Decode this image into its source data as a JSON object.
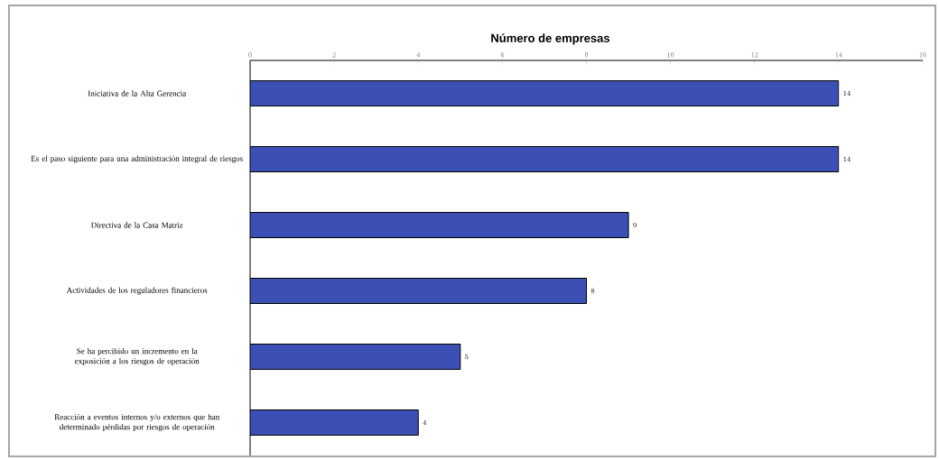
{
  "chart_data": {
    "type": "bar",
    "orientation": "horizontal",
    "xlabel": "Número de empresas",
    "categories": [
      "Iniciativa de la Alta Gerencia",
      "Es el paso siguiente para una administración integral de riesgos",
      "Directiva de la Casa Matriz",
      "Actividades de los reguladores financieros",
      "Se ha percibido un incremento en la exposición a los riesgos de operación",
      "Reacción a eventos internos y/o externos que han determinado pérdidas por riesgos de operación"
    ],
    "values": [
      14,
      14,
      9,
      8,
      5,
      4
    ],
    "color": "#3c4fb4",
    "data_labels": true,
    "xlim": [
      0,
      16
    ],
    "xticks": [
      0,
      2,
      4,
      6,
      8,
      10,
      12,
      14,
      16
    ]
  }
}
